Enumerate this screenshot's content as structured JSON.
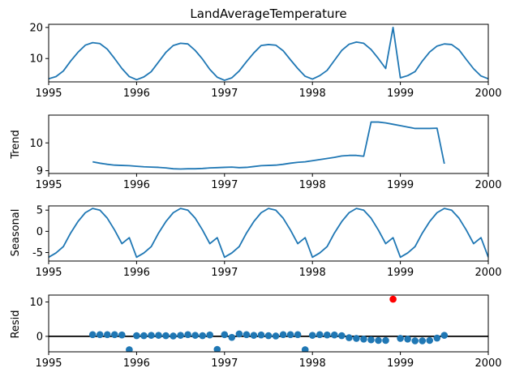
{
  "colors": {
    "line": "#1f77b4",
    "point": "#1f77b4",
    "outlier": "#ff0000",
    "zero_line": "#000000"
  },
  "chart_data": [
    {
      "type": "line",
      "title": "LandAverageTemperature",
      "ylabel": "",
      "xlim": [
        1995,
        2000
      ],
      "ylim": [
        2.5,
        21
      ],
      "xticks": [
        1995,
        1996,
        1997,
        1998,
        1999,
        2000
      ],
      "yticks": [
        10,
        20
      ],
      "x": [
        1995.0,
        1995.083,
        1995.167,
        1995.25,
        1995.333,
        1995.417,
        1995.5,
        1995.583,
        1995.667,
        1995.75,
        1995.833,
        1995.917,
        1996.0,
        1996.083,
        1996.167,
        1996.25,
        1996.333,
        1996.417,
        1996.5,
        1996.583,
        1996.667,
        1996.75,
        1996.833,
        1996.917,
        1997.0,
        1997.083,
        1997.167,
        1997.25,
        1997.333,
        1997.417,
        1997.5,
        1997.583,
        1997.667,
        1997.75,
        1997.833,
        1997.917,
        1998.0,
        1998.083,
        1998.167,
        1998.25,
        1998.333,
        1998.417,
        1998.5,
        1998.583,
        1998.667,
        1998.75,
        1998.833,
        1998.917,
        1999.0,
        1999.083,
        1999.167,
        1999.25,
        1999.333,
        1999.417,
        1999.5,
        1999.583,
        1999.667,
        1999.75,
        1999.833,
        1999.917,
        2000.0
      ],
      "y": [
        3.5,
        4.2,
        6.0,
        9.2,
        12.0,
        14.3,
        15.1,
        14.8,
        13.0,
        10.0,
        6.8,
        4.2,
        3.2,
        4.1,
        5.8,
        8.9,
        12.0,
        14.2,
        14.9,
        14.7,
        12.6,
        9.8,
        6.5,
        4.0,
        3.0,
        3.8,
        6.0,
        9.0,
        11.8,
        14.2,
        14.5,
        14.3,
        12.5,
        9.6,
        6.8,
        4.3,
        3.4,
        4.5,
        6.2,
        9.4,
        12.6,
        14.6,
        15.3,
        14.9,
        12.9,
        10.0,
        6.8,
        20.0,
        3.8,
        4.5,
        5.8,
        9.2,
        12.1,
        14.0,
        14.7,
        14.5,
        12.8,
        9.7,
        6.7,
        4.4,
        3.5
      ]
    },
    {
      "type": "line",
      "title": "",
      "ylabel": "Trend",
      "xlim": [
        1995,
        2000
      ],
      "ylim": [
        8.9,
        11.0
      ],
      "xticks": [
        1995,
        1996,
        1997,
        1998,
        1999,
        2000
      ],
      "yticks": [
        9,
        10
      ],
      "x": [
        1995.5,
        1995.583,
        1995.667,
        1995.75,
        1995.833,
        1995.917,
        1996.0,
        1996.083,
        1996.167,
        1996.25,
        1996.333,
        1996.417,
        1996.5,
        1996.583,
        1996.667,
        1996.75,
        1996.833,
        1996.917,
        1997.0,
        1997.083,
        1997.167,
        1997.25,
        1997.333,
        1997.417,
        1997.5,
        1997.583,
        1997.667,
        1997.75,
        1997.833,
        1997.917,
        1998.0,
        1998.083,
        1998.167,
        1998.25,
        1998.333,
        1998.417,
        1998.5,
        1998.583,
        1998.667,
        1998.75,
        1998.833,
        1998.917,
        1999.0,
        1999.083,
        1999.167,
        1999.25,
        1999.333,
        1999.417,
        1999.5
      ],
      "y": [
        9.32,
        9.27,
        9.23,
        9.2,
        9.19,
        9.18,
        9.16,
        9.14,
        9.13,
        9.12,
        9.1,
        9.07,
        9.06,
        9.07,
        9.07,
        9.08,
        9.1,
        9.11,
        9.12,
        9.13,
        9.11,
        9.12,
        9.15,
        9.18,
        9.19,
        9.2,
        9.23,
        9.27,
        9.3,
        9.32,
        9.36,
        9.4,
        9.44,
        9.48,
        9.53,
        9.55,
        9.55,
        9.52,
        10.75,
        10.75,
        10.72,
        10.67,
        10.62,
        10.57,
        10.52,
        10.52,
        10.52,
        10.53,
        9.25
      ]
    },
    {
      "type": "line",
      "title": "",
      "ylabel": "Seasonal",
      "xlim": [
        1995,
        2000
      ],
      "ylim": [
        -7,
        6
      ],
      "xticks": [
        1995,
        1996,
        1997,
        1998,
        1999,
        2000
      ],
      "yticks": [
        -5,
        0,
        5
      ],
      "x": [
        1995.0,
        1995.083,
        1995.167,
        1995.25,
        1995.333,
        1995.417,
        1995.5,
        1995.583,
        1995.667,
        1995.75,
        1995.833,
        1995.917,
        1996.0,
        1996.083,
        1996.167,
        1996.25,
        1996.333,
        1996.417,
        1996.5,
        1996.583,
        1996.667,
        1996.75,
        1996.833,
        1996.917,
        1997.0,
        1997.083,
        1997.167,
        1997.25,
        1997.333,
        1997.417,
        1997.5,
        1997.583,
        1997.667,
        1997.75,
        1997.833,
        1997.917,
        1998.0,
        1998.083,
        1998.167,
        1998.25,
        1998.333,
        1998.417,
        1998.5,
        1998.583,
        1998.667,
        1998.75,
        1998.833,
        1998.917,
        1999.0,
        1999.083,
        1999.167,
        1999.25,
        1999.333,
        1999.417,
        1999.5,
        1999.583,
        1999.667,
        1999.75,
        1999.833,
        1999.917,
        2000.0
      ],
      "y": [
        -6.1,
        -5.1,
        -3.6,
        -0.4,
        2.3,
        4.4,
        5.4,
        5.0,
        3.1,
        0.3,
        -2.9,
        -1.5,
        -6.1,
        -5.1,
        -3.6,
        -0.4,
        2.3,
        4.4,
        5.4,
        5.0,
        3.1,
        0.3,
        -2.9,
        -1.5,
        -6.1,
        -5.1,
        -3.6,
        -0.4,
        2.3,
        4.4,
        5.4,
        5.0,
        3.1,
        0.3,
        -2.9,
        -1.5,
        -6.1,
        -5.1,
        -3.6,
        -0.4,
        2.3,
        4.4,
        5.4,
        5.0,
        3.1,
        0.3,
        -2.9,
        -1.5,
        -6.1,
        -5.1,
        -3.6,
        -0.4,
        2.3,
        4.4,
        5.4,
        5.0,
        3.1,
        0.3,
        -2.9,
        -1.5,
        -6.1
      ]
    },
    {
      "type": "scatter",
      "title": "",
      "ylabel": "Resid",
      "xlim": [
        1995,
        2000
      ],
      "ylim": [
        -4.5,
        12
      ],
      "xticks": [
        1995,
        1996,
        1997,
        1998,
        1999,
        2000
      ],
      "yticks": [
        0,
        10
      ],
      "zero_line": 0,
      "x": [
        1995.5,
        1995.583,
        1995.667,
        1995.75,
        1995.833,
        1995.917,
        1996.0,
        1996.083,
        1996.167,
        1996.25,
        1996.333,
        1996.417,
        1996.5,
        1996.583,
        1996.667,
        1996.75,
        1996.833,
        1996.917,
        1997.0,
        1997.083,
        1997.167,
        1997.25,
        1997.333,
        1997.417,
        1997.5,
        1997.583,
        1997.667,
        1997.75,
        1997.833,
        1997.917,
        1998.0,
        1998.083,
        1998.167,
        1998.25,
        1998.333,
        1998.417,
        1998.5,
        1998.583,
        1998.667,
        1998.75,
        1998.833,
        1998.917,
        1999.0,
        1999.083,
        1999.167,
        1999.25,
        1999.333,
        1999.417,
        1999.5
      ],
      "y": [
        0.5,
        0.5,
        0.5,
        0.5,
        0.4,
        -3.9,
        0.2,
        0.2,
        0.3,
        0.3,
        0.2,
        0.1,
        0.3,
        0.5,
        0.3,
        0.2,
        0.4,
        -3.8,
        0.5,
        -0.3,
        0.7,
        0.5,
        0.3,
        0.4,
        0.2,
        0.1,
        0.5,
        0.5,
        0.5,
        -3.9,
        0.3,
        0.5,
        0.4,
        0.4,
        0.2,
        -0.4,
        -0.6,
        -0.8,
        -1.0,
        -1.2,
        -1.2,
        10.8,
        -0.6,
        -0.8,
        -1.3,
        -1.3,
        -1.2,
        -0.5,
        0.3
      ],
      "outlier_index": 41
    }
  ]
}
